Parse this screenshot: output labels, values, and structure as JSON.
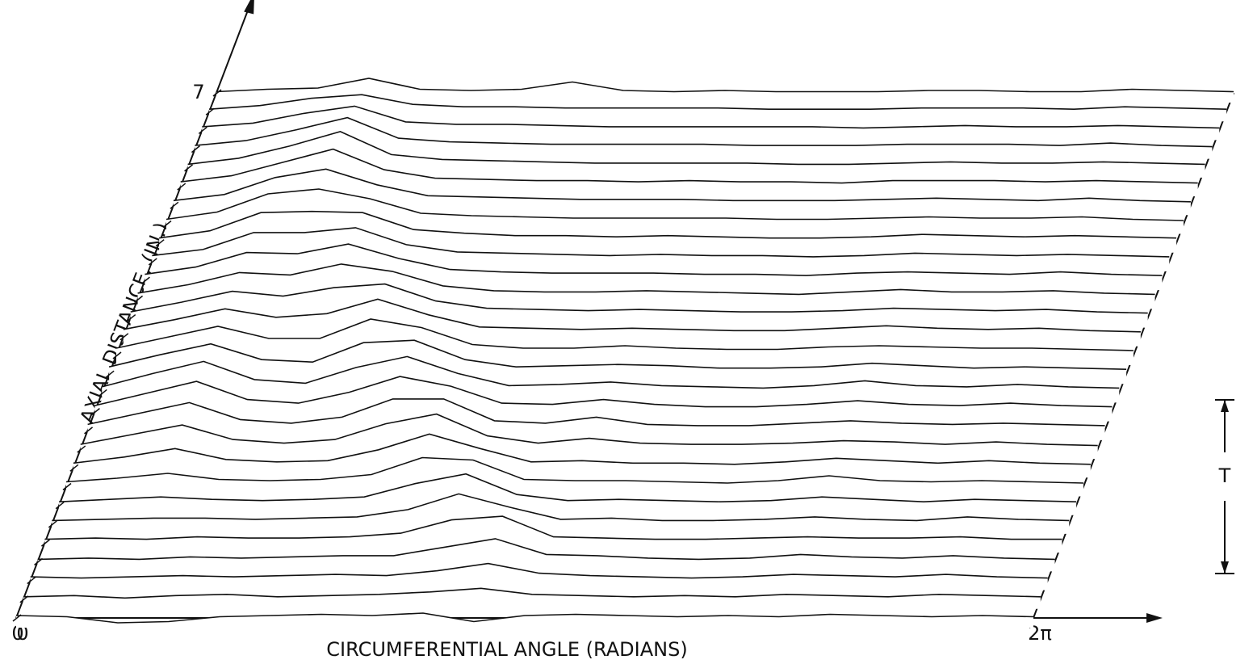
{
  "chart_data": {
    "type": "waterfall",
    "x_label": "CIRCUMFERENTIAL ANGLE (RADIANS)",
    "y_label": "AXIAL DISTANCE, (IN.)",
    "annotation": "T",
    "xlim": [
      0,
      6.283
    ],
    "ylim": [
      0,
      7
    ],
    "xticks": [
      0,
      {
        "value": 6.283,
        "label": "2π"
      }
    ],
    "yticks": [
      0,
      7
    ],
    "color": "#111111",
    "x": [
      0,
      0.314,
      0.628,
      0.942,
      1.257,
      1.571,
      1.885,
      2.199,
      2.513,
      2.827,
      3.142,
      3.456,
      3.77,
      4.084,
      4.398,
      4.712,
      5.027,
      5.341,
      5.655,
      5.969,
      6.283
    ],
    "series": [
      {
        "axial": 0,
        "values": [
          0.2,
          0.1,
          -0.4,
          -0.3,
          0.1,
          0.2,
          0.3,
          0.2,
          0.4,
          -0.3,
          0.2,
          0.3,
          0.2,
          0.1,
          0.2,
          0.1,
          0.3,
          0.2,
          0.1,
          0.2,
          0.1
        ]
      },
      {
        "axial": 0.25,
        "values": [
          0.2,
          0.3,
          0.1,
          0.3,
          0.4,
          0.2,
          0.3,
          0.4,
          0.6,
          0.9,
          0.4,
          0.3,
          0.2,
          0.3,
          0.2,
          0.4,
          0.3,
          0.2,
          0.4,
          0.3,
          0.2
        ]
      },
      {
        "axial": 0.5,
        "values": [
          0.3,
          0.2,
          0.3,
          0.4,
          0.3,
          0.4,
          0.5,
          0.4,
          0.8,
          1.4,
          0.6,
          0.4,
          0.3,
          0.2,
          0.3,
          0.5,
          0.4,
          0.3,
          0.5,
          0.3,
          0.2
        ]
      },
      {
        "axial": 0.75,
        "values": [
          0.2,
          0.3,
          0.2,
          0.4,
          0.3,
          0.4,
          0.5,
          0.5,
          1.2,
          1.9,
          0.6,
          0.5,
          0.3,
          0.2,
          0.3,
          0.6,
          0.4,
          0.3,
          0.5,
          0.3,
          0.2
        ]
      },
      {
        "axial": 1,
        "values": [
          0.3,
          0.4,
          0.3,
          0.5,
          0.4,
          0.4,
          0.5,
          0.8,
          1.9,
          2.2,
          0.5,
          0.4,
          0.3,
          0.3,
          0.4,
          0.5,
          0.4,
          0.4,
          0.5,
          0.3,
          0.3
        ]
      },
      {
        "axial": 1.25,
        "values": [
          0.3,
          0.4,
          0.5,
          0.5,
          0.4,
          0.5,
          0.6,
          1.2,
          2.5,
          1.4,
          0.4,
          0.5,
          0.3,
          0.3,
          0.4,
          0.6,
          0.4,
          0.3,
          0.6,
          0.4,
          0.3
        ]
      },
      {
        "axial": 1.5,
        "values": [
          0.3,
          0.5,
          0.7,
          0.5,
          0.4,
          0.5,
          0.7,
          1.8,
          2.6,
          0.9,
          0.4,
          0.5,
          0.4,
          0.3,
          0.4,
          0.7,
          0.5,
          0.3,
          0.5,
          0.4,
          0.3
        ]
      },
      {
        "axial": 1.75,
        "values": [
          0.4,
          0.7,
          1.1,
          0.6,
          0.5,
          0.6,
          1.0,
          2.4,
          2.2,
          0.6,
          0.5,
          0.5,
          0.4,
          0.3,
          0.5,
          0.9,
          0.5,
          0.4,
          0.5,
          0.4,
          0.3
        ]
      },
      {
        "axial": 2,
        "values": [
          0.4,
          0.9,
          1.6,
          0.7,
          0.5,
          0.6,
          1.5,
          2.8,
          1.6,
          0.5,
          0.6,
          0.4,
          0.4,
          0.3,
          0.5,
          0.8,
          0.6,
          0.4,
          0.6,
          0.4,
          0.3
        ]
      },
      {
        "axial": 2.25,
        "values": [
          0.4,
          1.2,
          2.0,
          0.8,
          0.5,
          0.8,
          2.1,
          2.9,
          1.1,
          0.5,
          0.9,
          0.5,
          0.4,
          0.4,
          0.5,
          0.7,
          0.6,
          0.4,
          0.6,
          0.4,
          0.3
        ]
      },
      {
        "axial": 2.5,
        "values": [
          0.5,
          1.4,
          2.3,
          0.9,
          0.6,
          1.1,
          2.6,
          2.6,
          0.8,
          0.6,
          1.1,
          0.5,
          0.4,
          0.4,
          0.6,
          0.8,
          0.6,
          0.5,
          0.6,
          0.5,
          0.4
        ]
      },
      {
        "axial": 2.75,
        "values": [
          0.5,
          1.5,
          2.5,
          1.0,
          0.7,
          1.6,
          2.9,
          2.1,
          0.7,
          0.6,
          1.0,
          0.6,
          0.4,
          0.4,
          0.6,
          0.9,
          0.6,
          0.5,
          0.7,
          0.5,
          0.4
        ]
      },
      {
        "axial": 3,
        "values": [
          0.5,
          1.6,
          2.6,
          1.1,
          0.8,
          2.1,
          3.0,
          1.6,
          0.6,
          0.7,
          0.9,
          0.6,
          0.5,
          0.4,
          0.6,
          1.0,
          0.6,
          0.5,
          0.7,
          0.5,
          0.4
        ]
      },
      {
        "axial": 3.25,
        "values": [
          0.6,
          1.6,
          2.5,
          1.2,
          1.0,
          2.6,
          2.8,
          1.2,
          0.6,
          0.7,
          0.8,
          0.7,
          0.5,
          0.5,
          0.6,
          0.9,
          0.7,
          0.5,
          0.6,
          0.5,
          0.4
        ]
      },
      {
        "axial": 3.5,
        "values": [
          0.6,
          1.5,
          2.4,
          1.4,
          1.4,
          3.0,
          2.3,
          0.9,
          0.6,
          0.6,
          0.8,
          0.6,
          0.5,
          0.5,
          0.7,
          0.8,
          0.7,
          0.6,
          0.6,
          0.5,
          0.4
        ]
      },
      {
        "axial": 3.75,
        "values": [
          0.6,
          1.4,
          2.3,
          1.6,
          1.9,
          3.1,
          1.8,
          0.8,
          0.7,
          0.6,
          0.7,
          0.6,
          0.5,
          0.5,
          0.7,
          0.9,
          0.7,
          0.6,
          0.7,
          0.5,
          0.4
        ]
      },
      {
        "axial": 4,
        "values": [
          0.5,
          1.3,
          2.2,
          1.8,
          2.5,
          2.8,
          1.4,
          0.8,
          0.7,
          0.6,
          0.7,
          0.6,
          0.5,
          0.5,
          0.6,
          0.8,
          0.7,
          0.6,
          0.7,
          0.5,
          0.4
        ]
      },
      {
        "axial": 4.25,
        "values": [
          0.5,
          1.2,
          2.2,
          2.0,
          2.9,
          2.3,
          1.1,
          0.7,
          0.6,
          0.6,
          0.7,
          0.6,
          0.5,
          0.4,
          0.6,
          0.8,
          0.6,
          0.6,
          0.7,
          0.5,
          0.4
        ]
      },
      {
        "axial": 4.5,
        "values": [
          0.5,
          1.1,
          2.3,
          2.2,
          3.0,
          1.8,
          0.9,
          0.7,
          0.6,
          0.6,
          0.6,
          0.5,
          0.5,
          0.4,
          0.6,
          0.7,
          0.6,
          0.5,
          0.7,
          0.5,
          0.4
        ]
      },
      {
        "axial": 4.75,
        "values": [
          0.5,
          1.0,
          2.4,
          2.4,
          2.8,
          1.4,
          0.8,
          0.7,
          0.6,
          0.5,
          0.6,
          0.5,
          0.5,
          0.4,
          0.5,
          0.7,
          0.6,
          0.5,
          0.6,
          0.5,
          0.4
        ]
      },
      {
        "axial": 5,
        "values": [
          0.4,
          1.0,
          2.5,
          2.6,
          2.5,
          1.1,
          0.8,
          0.6,
          0.6,
          0.5,
          0.6,
          0.5,
          0.4,
          0.4,
          0.5,
          0.7,
          0.6,
          0.5,
          0.6,
          0.5,
          0.4
        ]
      },
      {
        "axial": 5.25,
        "values": [
          0.4,
          1.0,
          2.5,
          2.9,
          2.1,
          0.9,
          0.7,
          0.6,
          0.5,
          0.5,
          0.5,
          0.5,
          0.4,
          0.4,
          0.5,
          0.6,
          0.5,
          0.5,
          0.6,
          0.4,
          0.3
        ]
      },
      {
        "axial": 5.5,
        "values": [
          0.4,
          0.9,
          2.3,
          3.0,
          1.7,
          0.8,
          0.7,
          0.6,
          0.5,
          0.5,
          0.5,
          0.4,
          0.4,
          0.4,
          0.5,
          0.6,
          0.5,
          0.4,
          0.6,
          0.4,
          0.3
        ]
      },
      {
        "axial": 5.75,
        "values": [
          0.4,
          0.9,
          2.0,
          3.1,
          1.4,
          0.7,
          0.6,
          0.5,
          0.5,
          0.4,
          0.5,
          0.4,
          0.4,
          0.3,
          0.5,
          0.5,
          0.5,
          0.4,
          0.5,
          0.4,
          0.3
        ]
      },
      {
        "axial": 6,
        "values": [
          0.3,
          0.8,
          1.8,
          3.0,
          1.1,
          0.7,
          0.6,
          0.5,
          0.4,
          0.4,
          0.4,
          0.4,
          0.3,
          0.3,
          0.4,
          0.5,
          0.4,
          0.4,
          0.5,
          0.4,
          0.3
        ]
      },
      {
        "axial": 6.25,
        "values": [
          0.3,
          0.7,
          1.6,
          2.6,
          0.9,
          0.6,
          0.5,
          0.4,
          0.4,
          0.4,
          0.4,
          0.3,
          0.3,
          0.3,
          0.4,
          0.4,
          0.4,
          0.3,
          0.5,
          0.3,
          0.2
        ]
      },
      {
        "axial": 6.5,
        "values": [
          0.3,
          0.6,
          1.4,
          2.0,
          0.7,
          0.5,
          0.5,
          0.4,
          0.3,
          0.3,
          0.3,
          0.3,
          0.3,
          0.2,
          0.3,
          0.4,
          0.3,
          0.3,
          0.4,
          0.3,
          0.2
        ]
      },
      {
        "axial": 6.75,
        "values": [
          0.2,
          0.5,
          1.1,
          1.4,
          0.6,
          0.4,
          0.4,
          0.3,
          0.3,
          0.3,
          0.3,
          0.2,
          0.2,
          0.2,
          0.3,
          0.3,
          0.3,
          0.2,
          0.4,
          0.3,
          0.2
        ]
      },
      {
        "axial": 7,
        "values": [
          0.1,
          0.3,
          0.4,
          1.2,
          0.3,
          0.2,
          0.3,
          0.9,
          0.2,
          0.1,
          0.2,
          0.1,
          0.1,
          0.1,
          0.2,
          0.2,
          0.1,
          0.1,
          0.3,
          0.2,
          0.1
        ]
      }
    ]
  }
}
